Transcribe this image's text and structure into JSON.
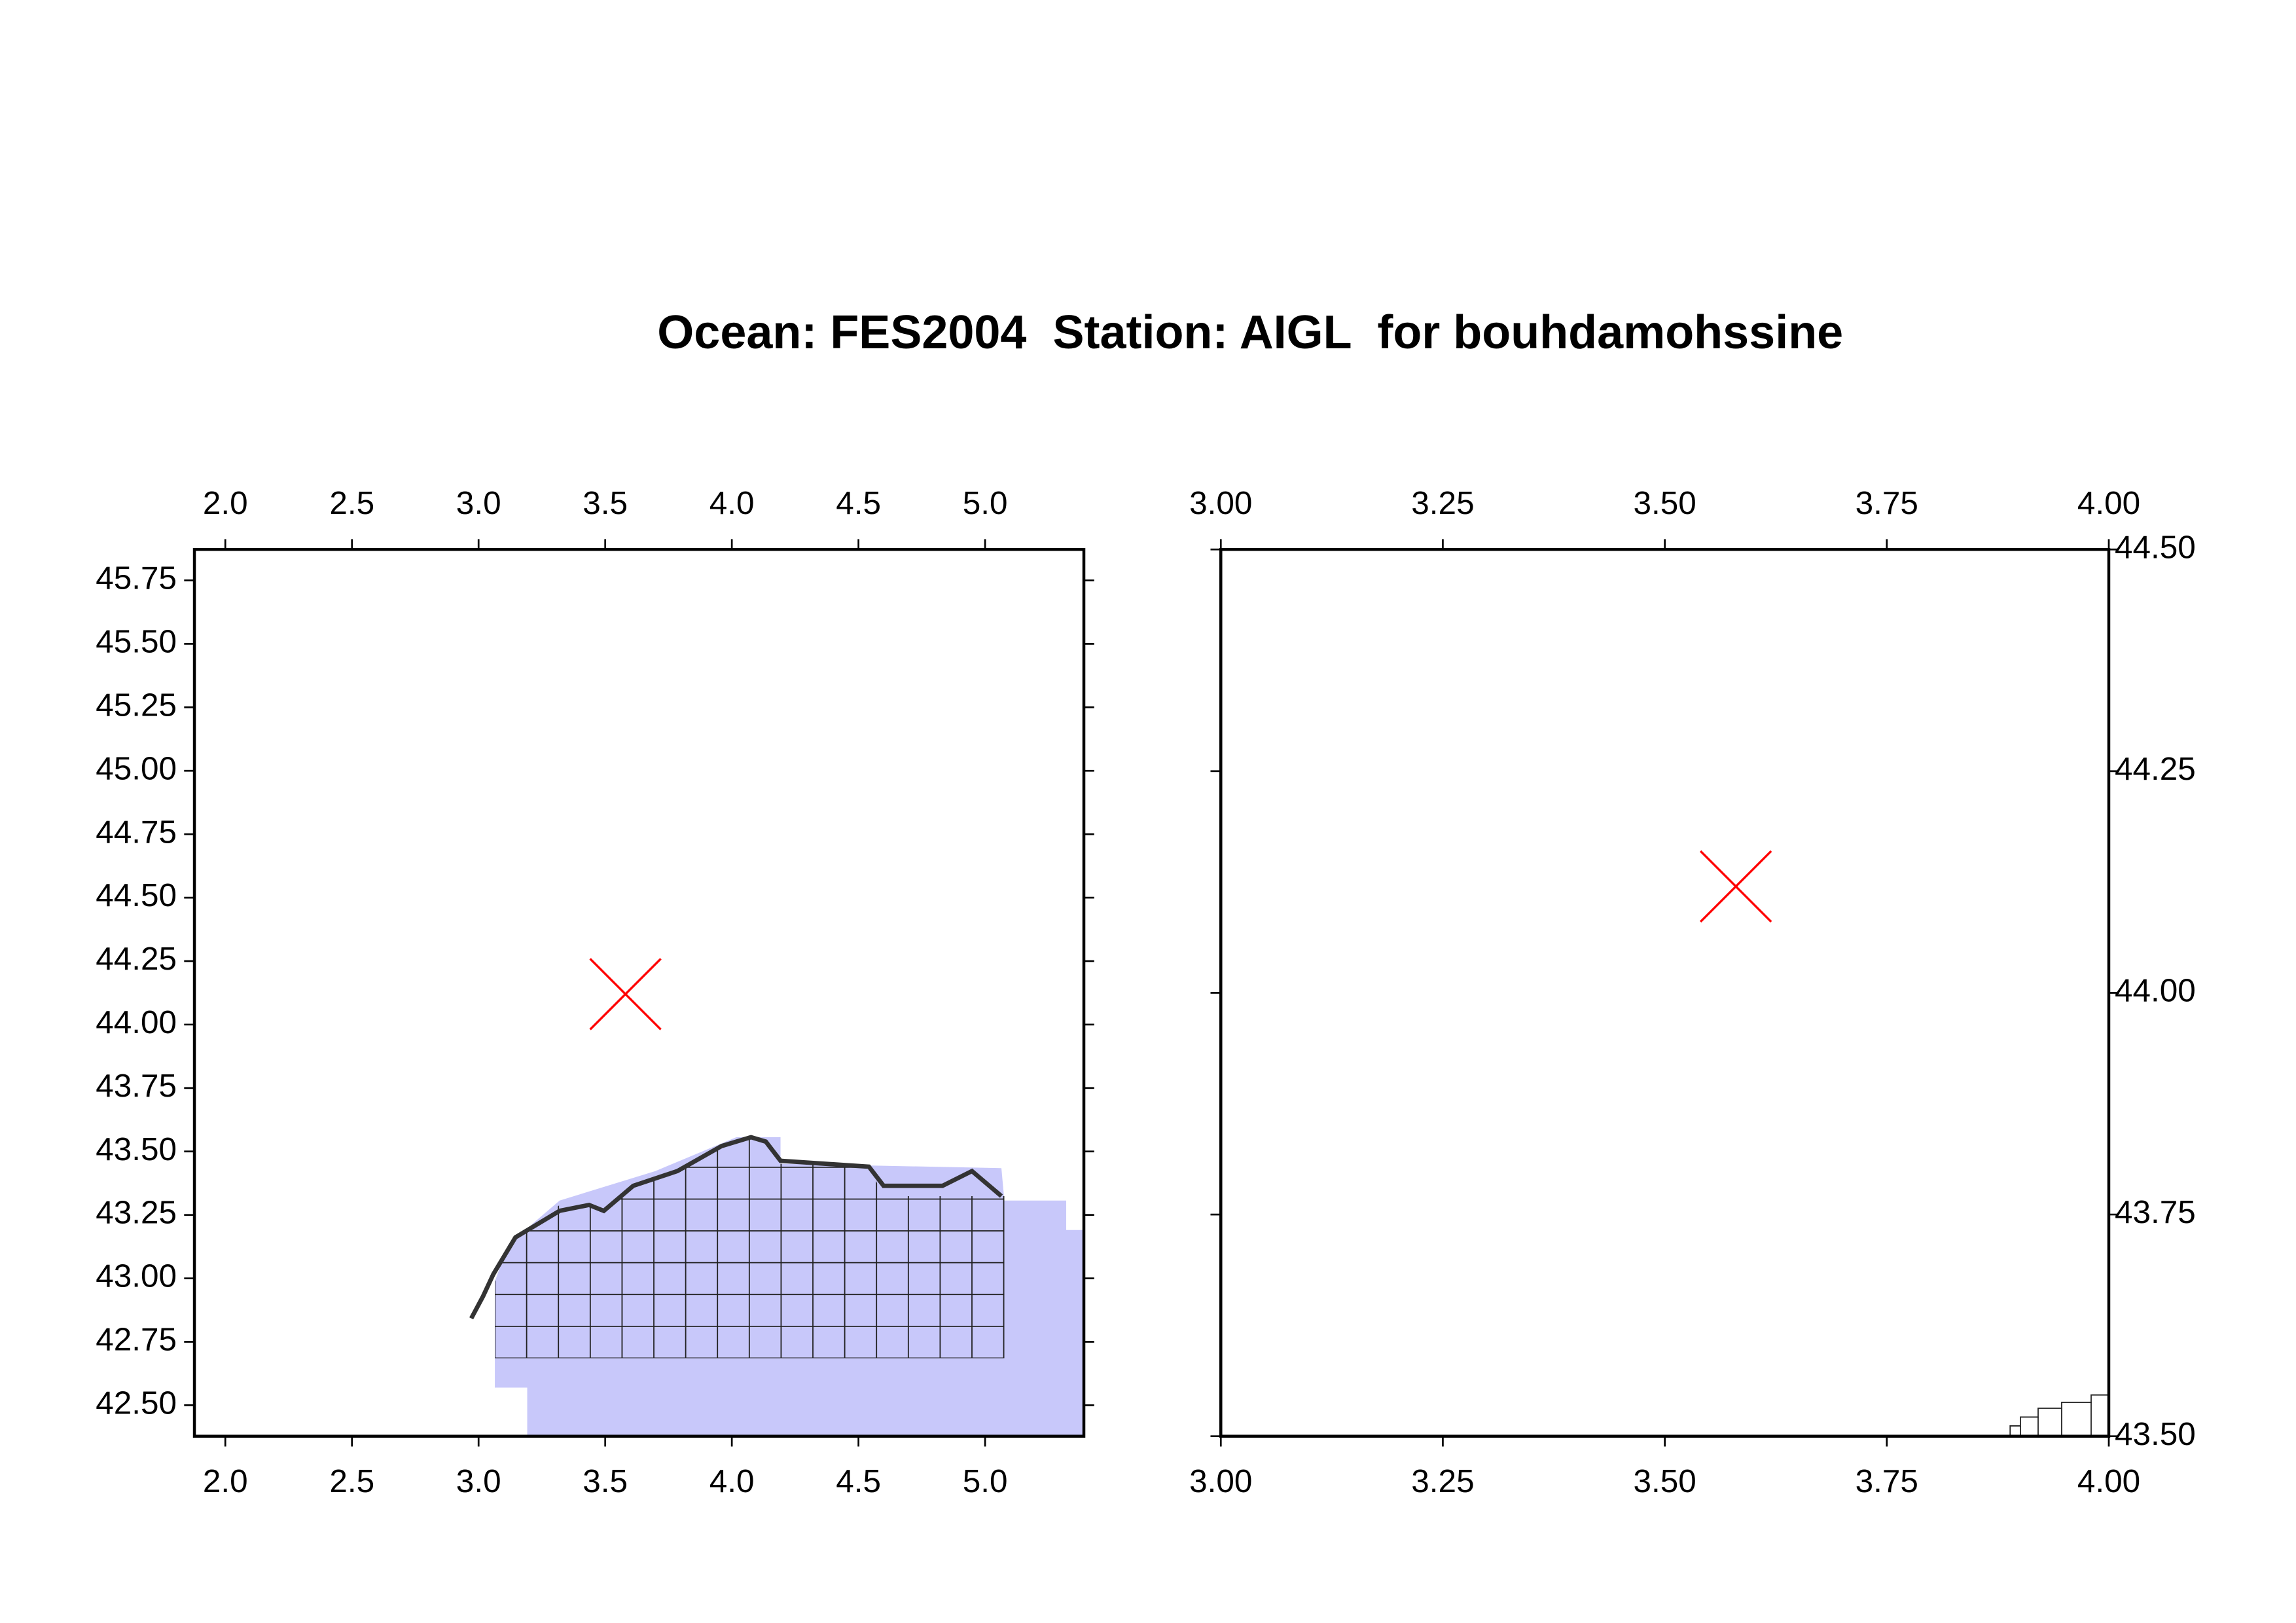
{
  "title": "Ocean: FES2004  Station: AIGL  for bouhdamohssine",
  "chart_data": [
    {
      "type": "scatter",
      "xlim": [
        1.878,
        5.39
      ],
      "ylim": [
        42.378,
        45.872
      ],
      "xticks": [
        {
          "value": 2,
          "label": "2.0"
        },
        {
          "value": 2.5,
          "label": "2.5"
        },
        {
          "value": 3,
          "label": "3.0"
        },
        {
          "value": 3.5,
          "label": "3.5"
        },
        {
          "value": 4,
          "label": "4.0"
        },
        {
          "value": 4.5,
          "label": "4.5"
        },
        {
          "value": 5,
          "label": "5.0"
        }
      ],
      "yticks": [
        {
          "value": 42.5,
          "label": "42.50"
        },
        42.75,
        {
          "value": 43,
          "label": "43.00"
        },
        43.25,
        {
          "value": 43.5,
          "label": "43.50"
        },
        43.75,
        {
          "value": 44,
          "label": "44.00"
        },
        44.25,
        {
          "value": 44.5,
          "label": "44.50"
        },
        44.75,
        {
          "value": 45,
          "label": "45.00"
        },
        45.25,
        {
          "value": 45.5,
          "label": "45.50"
        },
        45.75
      ],
      "points": {
        "x": [
          3.58
        ],
        "y": [
          44.12
        ],
        "color": "#ff0000"
      }
    },
    {
      "type": "scatter",
      "xlim": [
        3,
        4
      ],
      "ylim": [
        43.5,
        44.5
      ],
      "xticks": [
        {
          "value": 3,
          "label": "3.00"
        },
        3.25,
        {
          "value": 3.5,
          "label": "3.50"
        },
        3.75,
        {
          "value": 4,
          "label": "4.00"
        }
      ],
      "yticks": [
        {
          "value": 43.5,
          "label": "43.50"
        },
        43.75,
        {
          "value": 44,
          "label": "44.00"
        },
        44.25,
        {
          "value": 44.5,
          "label": "44.50"
        }
      ],
      "points": {
        "x": [
          3.58
        ],
        "y": [
          44.12
        ],
        "color": "#ff0000"
      }
    }
  ]
}
